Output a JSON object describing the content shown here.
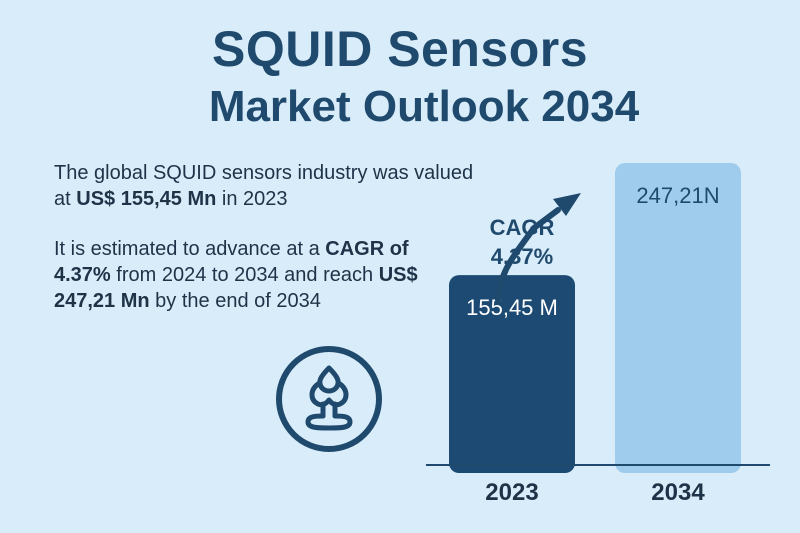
{
  "title": {
    "line1": "SQUID Sensors",
    "line2": "Market Outlook 2034"
  },
  "description": {
    "para1": {
      "text1": "The global SQUID sensors industry was valued at ",
      "bold1": "US$ 155,45 Mn",
      "text2": " in 2023"
    },
    "para2": {
      "text1": "It is estimated to advance at a ",
      "bold1": "CAGR of 4.37%",
      "text2": " from 2024 to 2034 and reach ",
      "bold2": "US$ 247,21 Mn",
      "text3": " by the end of 2034"
    }
  },
  "chart_data": {
    "type": "bar",
    "categories": [
      "2023",
      "2034"
    ],
    "values": [
      155.45,
      247.21
    ],
    "data_labels": [
      "155,45 M",
      "247,21N"
    ],
    "annotation": {
      "line1": "CAGR",
      "line2": "4,37%"
    },
    "colors": [
      "#1c4a72",
      "#9fcbec"
    ],
    "ylim": [
      0,
      280
    ],
    "grid": false
  },
  "colors": {
    "background": "#d9ecf9",
    "title": "#1f4a6e",
    "bar_2023": "#1c4a72",
    "bar_2034": "#9fcbec"
  },
  "icons": {
    "logo": "sensor-coil-icon"
  }
}
